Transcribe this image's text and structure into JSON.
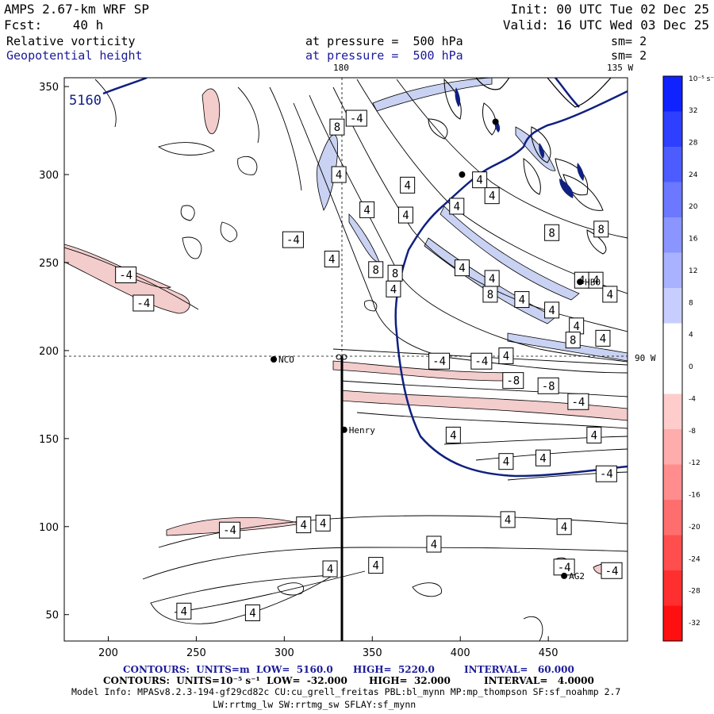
{
  "header": {
    "model": "AMPS 2.67-km WRF SP",
    "forecast": "Fcst:    40 h",
    "init": "Init: 00 UTC Tue 02 Dec 25",
    "valid": "Valid: 16 UTC Wed 03 Dec 25",
    "field1_name": "Relative vorticity",
    "field1_level": "at pressure =  500 hPa",
    "field1_sm": "sm= 2",
    "field2_name": "Geopotential height",
    "field2_level": "at pressure =  500 hPa",
    "field2_sm": "sm= 2"
  },
  "map": {
    "top_label_left": "180",
    "top_label_right": "135 W",
    "right_label": "90 W",
    "x_ticks": [
      "200",
      "250",
      "300",
      "350",
      "400",
      "450"
    ],
    "y_ticks": [
      "350",
      "300",
      "250",
      "200",
      "150",
      "100",
      "50"
    ],
    "height_label": "5160",
    "stations": [
      {
        "name": "NCO",
        "x": 294,
        "y": 195
      },
      {
        "name": "Henry",
        "x": 334,
        "y": 155
      },
      {
        "name": "HBO",
        "x": 468,
        "y": 239
      },
      {
        "name": "AG2",
        "x": 459,
        "y": 72
      },
      {
        "name": "",
        "x": 401,
        "y": 300
      },
      {
        "name": "",
        "x": 420,
        "y": 330
      }
    ],
    "contour_labels": [
      {
        "t": "8",
        "x": 330,
        "y": 327
      },
      {
        "t": "-4",
        "x": 341,
        "y": 332
      },
      {
        "t": "4",
        "x": 331,
        "y": 300
      },
      {
        "t": "-4",
        "x": 305,
        "y": 263
      },
      {
        "t": "4",
        "x": 327,
        "y": 252
      },
      {
        "t": "4",
        "x": 347,
        "y": 280
      },
      {
        "t": "4",
        "x": 369,
        "y": 277
      },
      {
        "t": "4",
        "x": 370,
        "y": 294
      },
      {
        "t": "8",
        "x": 352,
        "y": 246
      },
      {
        "t": "8",
        "x": 363,
        "y": 244
      },
      {
        "t": "4",
        "x": 362,
        "y": 235
      },
      {
        "t": "4",
        "x": 411,
        "y": 297
      },
      {
        "t": "4",
        "x": 418,
        "y": 288
      },
      {
        "t": "4",
        "x": 398,
        "y": 282
      },
      {
        "t": "4",
        "x": 401,
        "y": 247
      },
      {
        "t": "8",
        "x": 417,
        "y": 232
      },
      {
        "t": "4",
        "x": 418,
        "y": 241
      },
      {
        "t": "4",
        "x": 435,
        "y": 229
      },
      {
        "t": "8",
        "x": 452,
        "y": 267
      },
      {
        "t": "4",
        "x": 469,
        "y": 240
      },
      {
        "t": "4",
        "x": 452,
        "y": 223
      },
      {
        "t": "4",
        "x": 477,
        "y": 240
      },
      {
        "t": "4",
        "x": 466,
        "y": 214
      },
      {
        "t": "8",
        "x": 480,
        "y": 269
      },
      {
        "t": "4",
        "x": 485,
        "y": 232
      },
      {
        "t": "8",
        "x": 464,
        "y": 206
      },
      {
        "t": "4",
        "x": 481,
        "y": 207
      },
      {
        "t": "4",
        "x": 426,
        "y": 197
      },
      {
        "t": "-4",
        "x": 388,
        "y": 194
      },
      {
        "t": "-4",
        "x": 412,
        "y": 194
      },
      {
        "t": "-8",
        "x": 430,
        "y": 183
      },
      {
        "t": "-8",
        "x": 450,
        "y": 180
      },
      {
        "t": "-4",
        "x": 467,
        "y": 171
      },
      {
        "t": "4",
        "x": 476,
        "y": 152
      },
      {
        "t": "4",
        "x": 396,
        "y": 152
      },
      {
        "t": "4",
        "x": 447,
        "y": 139
      },
      {
        "t": "4",
        "x": 426,
        "y": 137
      },
      {
        "t": "-4",
        "x": 483,
        "y": 130
      },
      {
        "t": "-4",
        "x": 210,
        "y": 243
      },
      {
        "t": "-4",
        "x": 220,
        "y": 227
      },
      {
        "t": "-4",
        "x": 269,
        "y": 98
      },
      {
        "t": "4",
        "x": 311,
        "y": 101
      },
      {
        "t": "4",
        "x": 322,
        "y": 102
      },
      {
        "t": "4",
        "x": 427,
        "y": 104
      },
      {
        "t": "4",
        "x": 459,
        "y": 100
      },
      {
        "t": "4",
        "x": 385,
        "y": 90
      },
      {
        "t": "4",
        "x": 352,
        "y": 78
      },
      {
        "t": "4",
        "x": 326,
        "y": 76
      },
      {
        "t": "4",
        "x": 243,
        "y": 52
      },
      {
        "t": "4",
        "x": 282,
        "y": 51
      },
      {
        "t": "-4",
        "x": 459,
        "y": 77
      },
      {
        "t": "-4",
        "x": 486,
        "y": 75
      }
    ]
  },
  "colorbar": {
    "unit": "10⁻⁵ s⁻¹",
    "labels": [
      "32",
      "28",
      "24",
      "20",
      "16",
      "12",
      "8",
      "4",
      "0",
      "-4",
      "-8",
      "-12",
      "-16",
      "-20",
      "-24",
      "-28",
      "-32"
    ]
  },
  "footer": {
    "line1_a": "CONTOURS:  UNITS=m  LOW=  5160.0",
    "line1_b": "HIGH=  5220.0",
    "line1_c": "INTERVAL=   60.000",
    "line2_a": "CONTOURS:  UNITS=10⁻⁵ s⁻¹  LOW=  -32.000",
    "line2_b": "HIGH=  32.000",
    "line2_c": "INTERVAL=   4.0000",
    "line3": "Model Info: MPASv8.2.3-194-gf29cd82c CU:cu_grell_freitas PBL:bl_mynn MP:mp_thompson SF:sf_noahmp 2.7",
    "line4": "LW:rrtmg_lw SW:rrtmg_sw SFLAY:sf_mynn"
  },
  "colors": {
    "height_contour": "#102080",
    "positive_fill": "#c8d0f0",
    "negative_fill": "#f0c8c8"
  }
}
